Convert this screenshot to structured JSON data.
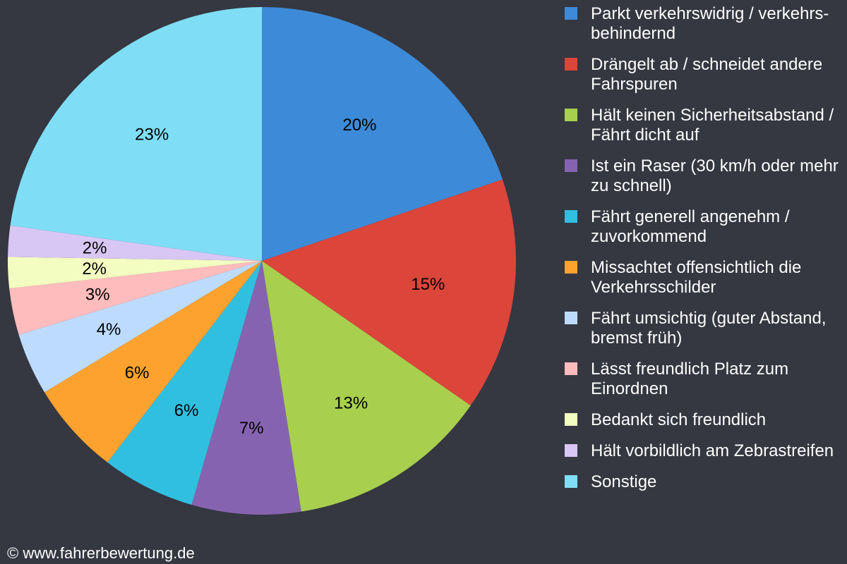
{
  "chart_data": {
    "type": "pie",
    "start": "top",
    "direction": "clockwise",
    "legend_position": "right",
    "slices": [
      {
        "label": "Parkt verkehrswidrig / verkehrs-behindernd",
        "value": 20,
        "data_label": "20%",
        "color": "#3d8bd8"
      },
      {
        "label": "Drängelt ab / schneidet andere Fahrspuren",
        "value": 15,
        "data_label": "15%",
        "color": "#dc453a"
      },
      {
        "label": "Hält keinen Sicherheitsabstand / Fährt dicht auf",
        "value": 13,
        "data_label": "13%",
        "color": "#a8cf4e"
      },
      {
        "label": "Ist ein Raser (30 km/h oder mehr zu schnell)",
        "value": 7,
        "data_label": "7%",
        "color": "#8663b0"
      },
      {
        "label": "Fährt generell angenehm / zuvorkommend",
        "value": 6,
        "data_label": "6%",
        "color": "#31bfe0"
      },
      {
        "label": "Missachtet offensichtlich die Verkehrsschilder",
        "value": 6,
        "data_label": "6%",
        "color": "#fda22f"
      },
      {
        "label": "Fährt umsichtig (guter Abstand, bremst früh)",
        "value": 4,
        "data_label": "4%",
        "color": "#bddcfd"
      },
      {
        "label": "Lässt freundlich Platz zum Einordnen",
        "value": 3,
        "data_label": "3%",
        "color": "#ffbcbc"
      },
      {
        "label": "Bedankt sich freundlich",
        "value": 2,
        "data_label": "2%",
        "color": "#f3fdc1"
      },
      {
        "label": "Hält vorbildlich am Zebrastreifen",
        "value": 2,
        "data_label": "2%",
        "color": "#d8c6f5"
      },
      {
        "label": "Sonstige",
        "value": 23,
        "data_label": "23%",
        "color": "#7fdef5"
      }
    ]
  },
  "footer": "© www.fahrerbewertung.de"
}
